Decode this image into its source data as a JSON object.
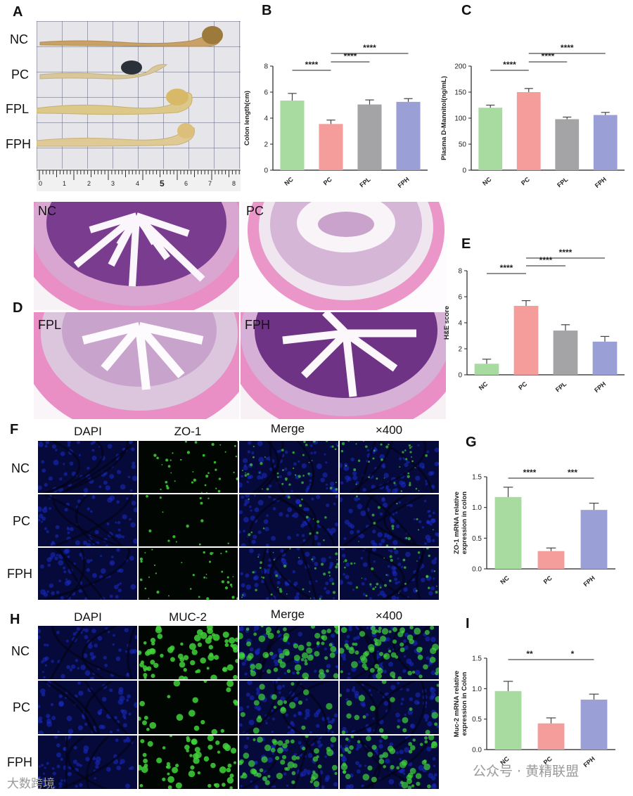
{
  "panels": {
    "a": "A",
    "b": "B",
    "c": "C",
    "d": "D",
    "e": "E",
    "f": "F",
    "g": "G",
    "h": "H",
    "i": "I"
  },
  "panelA": {
    "rows": [
      "NC",
      "PC",
      "FPL",
      "FPH"
    ],
    "ruler_ticks": [
      "0",
      "1",
      "2",
      "3",
      "4",
      "5",
      "6",
      "7",
      "8"
    ]
  },
  "panelD": {
    "tiles": [
      "NC",
      "PC",
      "FPL",
      "FPH"
    ]
  },
  "panelF": {
    "columns": [
      "DAPI",
      "ZO-1",
      "Merge",
      "×400"
    ],
    "rows": [
      "NC",
      "PC",
      "FPH"
    ]
  },
  "panelH": {
    "columns": [
      "DAPI",
      "MUC-2",
      "Merge",
      "×400"
    ],
    "rows": [
      "NC",
      "PC",
      "FPH"
    ]
  },
  "colors": {
    "NC": "#a8dba0",
    "PC": "#f59d9b",
    "FPL": "#a4a3a6",
    "FPH": "#9a9fd6"
  },
  "chart_data": [
    {
      "id": "B",
      "type": "bar",
      "categories": [
        "NC",
        "PC",
        "FPL",
        "FPH"
      ],
      "values": [
        5.35,
        3.55,
        5.05,
        5.25
      ],
      "errors": [
        0.55,
        0.3,
        0.35,
        0.25
      ],
      "ylabel": "Colon length(cm)",
      "ylim": [
        0,
        8
      ],
      "yticks": [
        0,
        2,
        4,
        6,
        8
      ],
      "significance": [
        {
          "from": 0,
          "to": 1,
          "label": "****"
        },
        {
          "from": 1,
          "to": 2,
          "label": "****"
        },
        {
          "from": 1,
          "to": 3,
          "label": "****"
        }
      ]
    },
    {
      "id": "C",
      "type": "bar",
      "categories": [
        "NC",
        "PC",
        "FPL",
        "FPH"
      ],
      "values": [
        120,
        150,
        98,
        106
      ],
      "errors": [
        5,
        7,
        4,
        5
      ],
      "ylabel": "Plasma D-Mannitol(ng/mL)",
      "ylim": [
        0,
        200
      ],
      "yticks": [
        0,
        50,
        100,
        150,
        200
      ],
      "significance": [
        {
          "from": 0,
          "to": 1,
          "label": "****"
        },
        {
          "from": 1,
          "to": 2,
          "label": "****"
        },
        {
          "from": 1,
          "to": 3,
          "label": "****"
        }
      ]
    },
    {
      "id": "E",
      "type": "bar",
      "categories": [
        "NC",
        "PC",
        "FPL",
        "FPH"
      ],
      "values": [
        0.85,
        5.3,
        3.4,
        2.55
      ],
      "errors": [
        0.35,
        0.4,
        0.45,
        0.4
      ],
      "ylabel": "H&E score",
      "ylim": [
        0,
        8
      ],
      "yticks": [
        0,
        2,
        4,
        6,
        8
      ],
      "significance": [
        {
          "from": 0,
          "to": 1,
          "label": "****"
        },
        {
          "from": 1,
          "to": 2,
          "label": "****"
        },
        {
          "from": 1,
          "to": 3,
          "label": "****"
        }
      ]
    },
    {
      "id": "G",
      "type": "bar",
      "categories": [
        "NC",
        "PC",
        "FPH"
      ],
      "values": [
        1.17,
        0.29,
        0.96
      ],
      "errors": [
        0.16,
        0.05,
        0.11
      ],
      "ylabel": "ZO-1 mRNA relative expression in colon",
      "ylim": [
        0,
        1.5
      ],
      "yticks": [
        "0.0",
        "0.5",
        "1.0",
        "1.5"
      ],
      "significance": [
        {
          "from": 0,
          "to": 1,
          "label": "****"
        },
        {
          "from": 1,
          "to": 2,
          "label": "***"
        }
      ]
    },
    {
      "id": "I",
      "type": "bar",
      "categories": [
        "NC",
        "PC",
        "FPH"
      ],
      "values": [
        0.96,
        0.43,
        0.82
      ],
      "errors": [
        0.16,
        0.09,
        0.09
      ],
      "ylabel": "Muc-2 mRNA relative expression in Colon",
      "ylim": [
        0,
        1.5
      ],
      "yticks": [
        "0.0",
        "0.5",
        "1.0",
        "1.5"
      ],
      "significance": [
        {
          "from": 0,
          "to": 1,
          "label": "**"
        },
        {
          "from": 1,
          "to": 2,
          "label": "*"
        }
      ]
    }
  ],
  "watermarks": {
    "left": "大数跨境",
    "right": "公众号 · 黄精联盟"
  }
}
